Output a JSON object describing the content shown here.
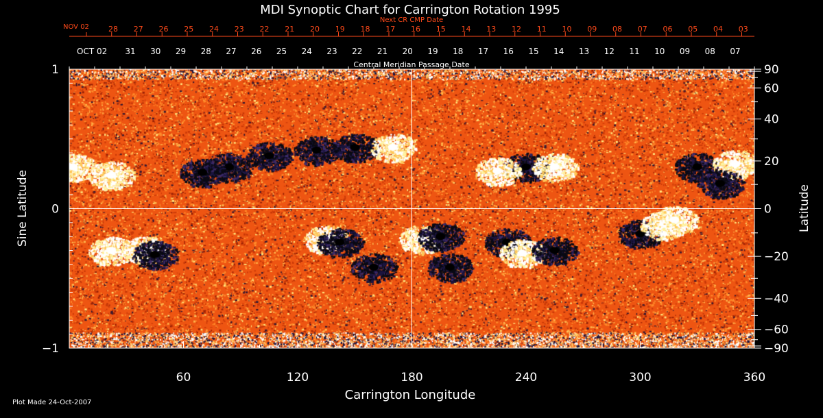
{
  "chart_data": {
    "type": "heatmap",
    "title": "MDI Synoptic Chart for Carrington Rotation 1995",
    "xlabel": "Carrington Longitude",
    "ylabel_left": "Sine Latitude",
    "ylabel_right": "Latitude",
    "xlim": [
      0,
      360
    ],
    "ylim": [
      -1,
      1
    ],
    "x_ticks": [
      60,
      120,
      180,
      240,
      300,
      360
    ],
    "y_ticks_left": [
      {
        "value": 1,
        "label": "1"
      },
      {
        "value": 0,
        "label": "0"
      },
      {
        "value": -1,
        "label": "−1"
      }
    ],
    "y_ticks_right": [
      {
        "lat": 90,
        "label": "90"
      },
      {
        "lat": 60,
        "label": "60"
      },
      {
        "lat": 40,
        "label": "40"
      },
      {
        "lat": 20,
        "label": "20"
      },
      {
        "lat": 0,
        "label": "0"
      },
      {
        "lat": -20,
        "label": "−20"
      },
      {
        "lat": -40,
        "label": "−40"
      },
      {
        "lat": -60,
        "label": "−60"
      },
      {
        "lat": -90,
        "label": "−90"
      }
    ],
    "crosshair": {
      "longitude": 180,
      "sine_latitude": 0
    },
    "top_axis_inner": {
      "title": "Central Meridian Passage Date",
      "month_label": "OCT 02",
      "day_labels": [
        "31",
        "30",
        "29",
        "28",
        "27",
        "26",
        "25",
        "24",
        "23",
        "22",
        "21",
        "20",
        "19",
        "18",
        "17",
        "16",
        "15",
        "14",
        "13",
        "12",
        "11",
        "10",
        "09",
        "08",
        "07"
      ]
    },
    "top_axis_outer": {
      "title": "Next CR CMP Date",
      "month_label": "NOV 02",
      "day_labels": [
        "28",
        "27",
        "26",
        "25",
        "24",
        "23",
        "22",
        "21",
        "20",
        "19",
        "18",
        "17",
        "16",
        "15",
        "14",
        "13",
        "12",
        "11",
        "10",
        "09",
        "08",
        "07",
        "06",
        "05",
        "04",
        "03"
      ]
    },
    "active_regions": [
      {
        "lon": 150,
        "sinlat": 0.44,
        "polarity": "negative"
      },
      {
        "lon": 170,
        "sinlat": 0.44,
        "polarity": "positive"
      },
      {
        "lon": 130,
        "sinlat": 0.42,
        "polarity": "negative"
      },
      {
        "lon": 105,
        "sinlat": 0.38,
        "polarity": "negative"
      },
      {
        "lon": 84,
        "sinlat": 0.3,
        "polarity": "negative"
      },
      {
        "lon": 70,
        "sinlat": 0.26,
        "polarity": "negative"
      },
      {
        "lon": 22,
        "sinlat": 0.24,
        "polarity": "positive"
      },
      {
        "lon": 2,
        "sinlat": 0.3,
        "polarity": "positive"
      },
      {
        "lon": 240,
        "sinlat": 0.3,
        "polarity": "negative"
      },
      {
        "lon": 225,
        "sinlat": 0.27,
        "polarity": "positive"
      },
      {
        "lon": 255,
        "sinlat": 0.3,
        "polarity": "positive"
      },
      {
        "lon": 330,
        "sinlat": 0.3,
        "polarity": "negative"
      },
      {
        "lon": 350,
        "sinlat": 0.32,
        "polarity": "positive"
      },
      {
        "lon": 342,
        "sinlat": 0.18,
        "polarity": "negative"
      },
      {
        "lon": 22,
        "sinlat": -0.3,
        "polarity": "positive"
      },
      {
        "lon": 40,
        "sinlat": -0.3,
        "polarity": "positive"
      },
      {
        "lon": 45,
        "sinlat": -0.33,
        "polarity": "negative"
      },
      {
        "lon": 160,
        "sinlat": -0.42,
        "polarity": "negative"
      },
      {
        "lon": 185,
        "sinlat": -0.22,
        "polarity": "positive"
      },
      {
        "lon": 195,
        "sinlat": -0.2,
        "polarity": "negative"
      },
      {
        "lon": 200,
        "sinlat": -0.42,
        "polarity": "negative"
      },
      {
        "lon": 230,
        "sinlat": -0.24,
        "polarity": "negative"
      },
      {
        "lon": 238,
        "sinlat": -0.32,
        "polarity": "positive"
      },
      {
        "lon": 255,
        "sinlat": -0.3,
        "polarity": "negative"
      },
      {
        "lon": 300,
        "sinlat": -0.18,
        "polarity": "negative"
      },
      {
        "lon": 312,
        "sinlat": -0.12,
        "polarity": "positive"
      },
      {
        "lon": 318,
        "sinlat": -0.08,
        "polarity": "positive"
      },
      {
        "lon": 135,
        "sinlat": -0.22,
        "polarity": "positive"
      },
      {
        "lon": 142,
        "sinlat": -0.24,
        "polarity": "negative"
      }
    ]
  },
  "footer": {
    "plot_made": "Plot Made 24-Oct-2007"
  },
  "colors": {
    "background": "#000000",
    "text": "#ffffff",
    "next_cr": "#ff4a1a",
    "field_base": "#ee5512",
    "positive": "#fff2a0",
    "negative": "#1b1540"
  }
}
